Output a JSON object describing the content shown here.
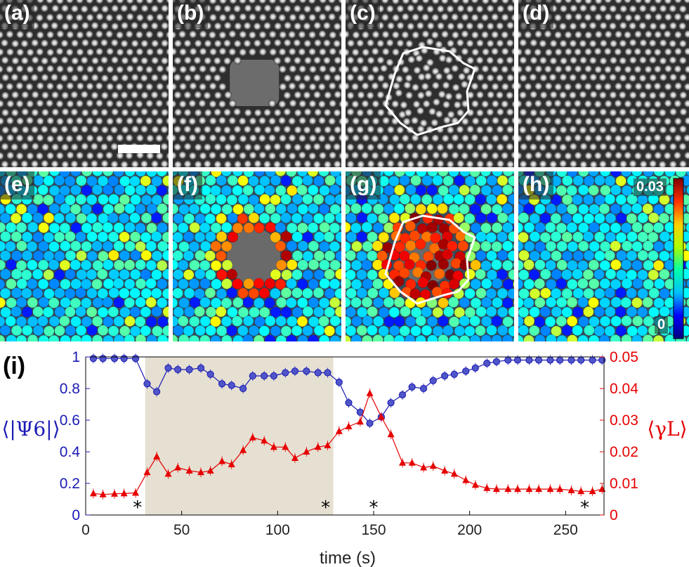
{
  "panels_top": [
    {
      "label": "(a)",
      "state": "intact"
    },
    {
      "label": "(b)",
      "state": "hole"
    },
    {
      "label": "(c)",
      "state": "disordered"
    },
    {
      "label": "(d)",
      "state": "recovered"
    }
  ],
  "panels_bottom": [
    {
      "label": "(e)",
      "state": "intact"
    },
    {
      "label": "(f)",
      "state": "hole"
    },
    {
      "label": "(g)",
      "state": "disordered"
    },
    {
      "label": "(h)",
      "state": "recovered"
    }
  ],
  "colorbar": {
    "max_label": "0.03",
    "min_label": "0",
    "colors": [
      "#00007f",
      "#0000ff",
      "#00bfff",
      "#00ffaa",
      "#aaff00",
      "#ffd000",
      "#ff3000",
      "#7f0000"
    ]
  },
  "chart_data": {
    "type": "line",
    "panel_label": "(i)",
    "xlabel": "time (s)",
    "ylabel_left": "⟨|Ψ6|⟩",
    "ylabel_right": "⟨γL⟩",
    "xlim": [
      0,
      270
    ],
    "ylim_left": [
      0,
      1
    ],
    "ylim_right": [
      0,
      0.05
    ],
    "xticks": [
      0,
      50,
      100,
      150,
      200,
      250
    ],
    "yticks_left": [
      "0",
      "0.2",
      "0.4",
      "0.6",
      "0.8",
      "1"
    ],
    "yticks_right": [
      "0",
      "0.01",
      "0.02",
      "0.03",
      "0.04",
      "0.05"
    ],
    "shaded_interval": [
      31,
      129
    ],
    "markers": {
      "symbol": "*",
      "x": [
        27,
        125,
        150,
        260
      ]
    },
    "series": [
      {
        "name": "⟨|Ψ6|⟩",
        "axis": "left",
        "color": "#1a1ab4",
        "marker": "circle",
        "x": [
          4,
          9,
          15,
          20,
          26,
          32,
          37,
          43,
          48,
          54,
          60,
          65,
          71,
          76,
          82,
          87,
          93,
          98,
          104,
          109,
          115,
          121,
          126,
          132,
          137,
          143,
          148,
          154,
          159,
          165,
          170,
          176,
          181,
          187,
          192,
          198,
          203,
          209,
          214,
          220,
          225,
          231,
          236,
          242,
          247,
          253,
          258,
          264,
          269
        ],
        "y": [
          0.99,
          0.99,
          0.99,
          0.99,
          0.99,
          0.83,
          0.78,
          0.93,
          0.92,
          0.92,
          0.93,
          0.89,
          0.83,
          0.82,
          0.8,
          0.88,
          0.88,
          0.88,
          0.9,
          0.91,
          0.91,
          0.9,
          0.9,
          0.84,
          0.71,
          0.65,
          0.58,
          0.62,
          0.71,
          0.76,
          0.81,
          0.8,
          0.85,
          0.88,
          0.89,
          0.91,
          0.93,
          0.96,
          0.97,
          0.98,
          0.98,
          0.98,
          0.98,
          0.98,
          0.98,
          0.98,
          0.98,
          0.98,
          0.98
        ]
      },
      {
        "name": "⟨γL⟩",
        "axis": "right",
        "color": "#e60000",
        "marker": "triangle",
        "x": [
          4,
          9,
          15,
          20,
          26,
          32,
          37,
          43,
          48,
          54,
          60,
          65,
          71,
          76,
          82,
          87,
          93,
          98,
          104,
          109,
          115,
          121,
          126,
          132,
          137,
          143,
          148,
          154,
          159,
          165,
          170,
          176,
          181,
          187,
          192,
          198,
          203,
          209,
          214,
          220,
          225,
          231,
          236,
          242,
          247,
          253,
          258,
          264,
          269
        ],
        "y": [
          0.0068,
          0.0065,
          0.0067,
          0.0068,
          0.007,
          0.0135,
          0.0185,
          0.013,
          0.015,
          0.014,
          0.0135,
          0.014,
          0.017,
          0.016,
          0.0205,
          0.0245,
          0.0235,
          0.0215,
          0.0215,
          0.018,
          0.02,
          0.0215,
          0.022,
          0.0265,
          0.028,
          0.0295,
          0.0385,
          0.031,
          0.0255,
          0.0165,
          0.0165,
          0.015,
          0.0155,
          0.014,
          0.013,
          0.011,
          0.0095,
          0.0085,
          0.0082,
          0.0082,
          0.0082,
          0.0082,
          0.0082,
          0.0082,
          0.0082,
          0.0078,
          0.0075,
          0.0075,
          0.0082
        ]
      }
    ]
  }
}
